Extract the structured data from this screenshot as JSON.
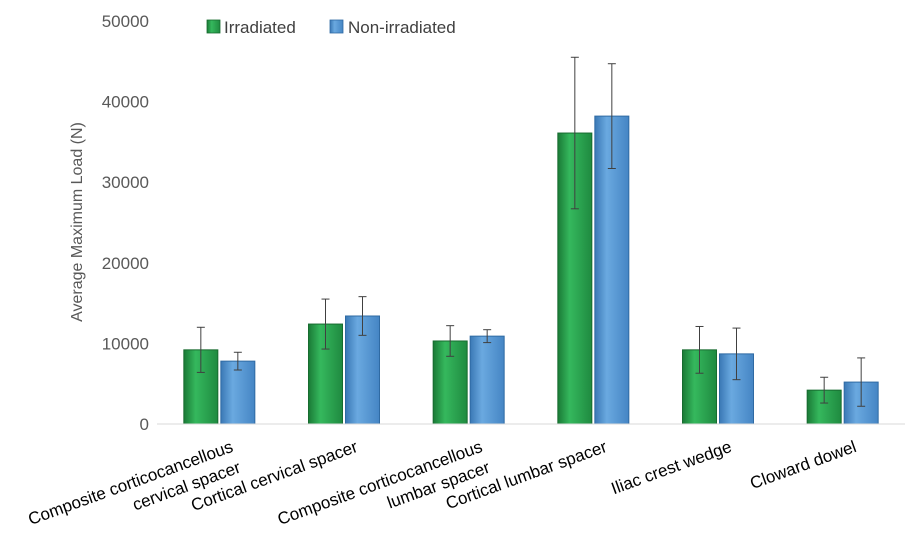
{
  "chart_data": {
    "type": "bar",
    "ylabel": "Average Maximum Load (N)",
    "xlabel": "",
    "ylim": [
      0,
      50000
    ],
    "yticks": [
      0,
      10000,
      20000,
      30000,
      40000,
      50000
    ],
    "grid": false,
    "legend_position": "top-left",
    "categories": [
      [
        "Composite corticocancellous",
        "cervical spacer"
      ],
      [
        "Cortical cervical spacer"
      ],
      [
        "Composite corticocancellous",
        "lumbar spacer"
      ],
      [
        "Cortical lumbar spacer"
      ],
      [
        "Iliac crest wedge"
      ],
      [
        "Cloward dowel"
      ]
    ],
    "series": [
      {
        "name": "Irradiated",
        "color": "#2aa74f",
        "values": [
          9200,
          12400,
          10300,
          36100,
          9200,
          4200
        ],
        "errors": [
          2800,
          3100,
          1900,
          9400,
          2900,
          1600
        ]
      },
      {
        "name": "Non-irradiated",
        "color": "#5b9bd5",
        "values": [
          7800,
          13400,
          10900,
          38200,
          8700,
          5200
        ],
        "errors": [
          1100,
          2400,
          800,
          6500,
          3200,
          3000
        ]
      }
    ]
  }
}
